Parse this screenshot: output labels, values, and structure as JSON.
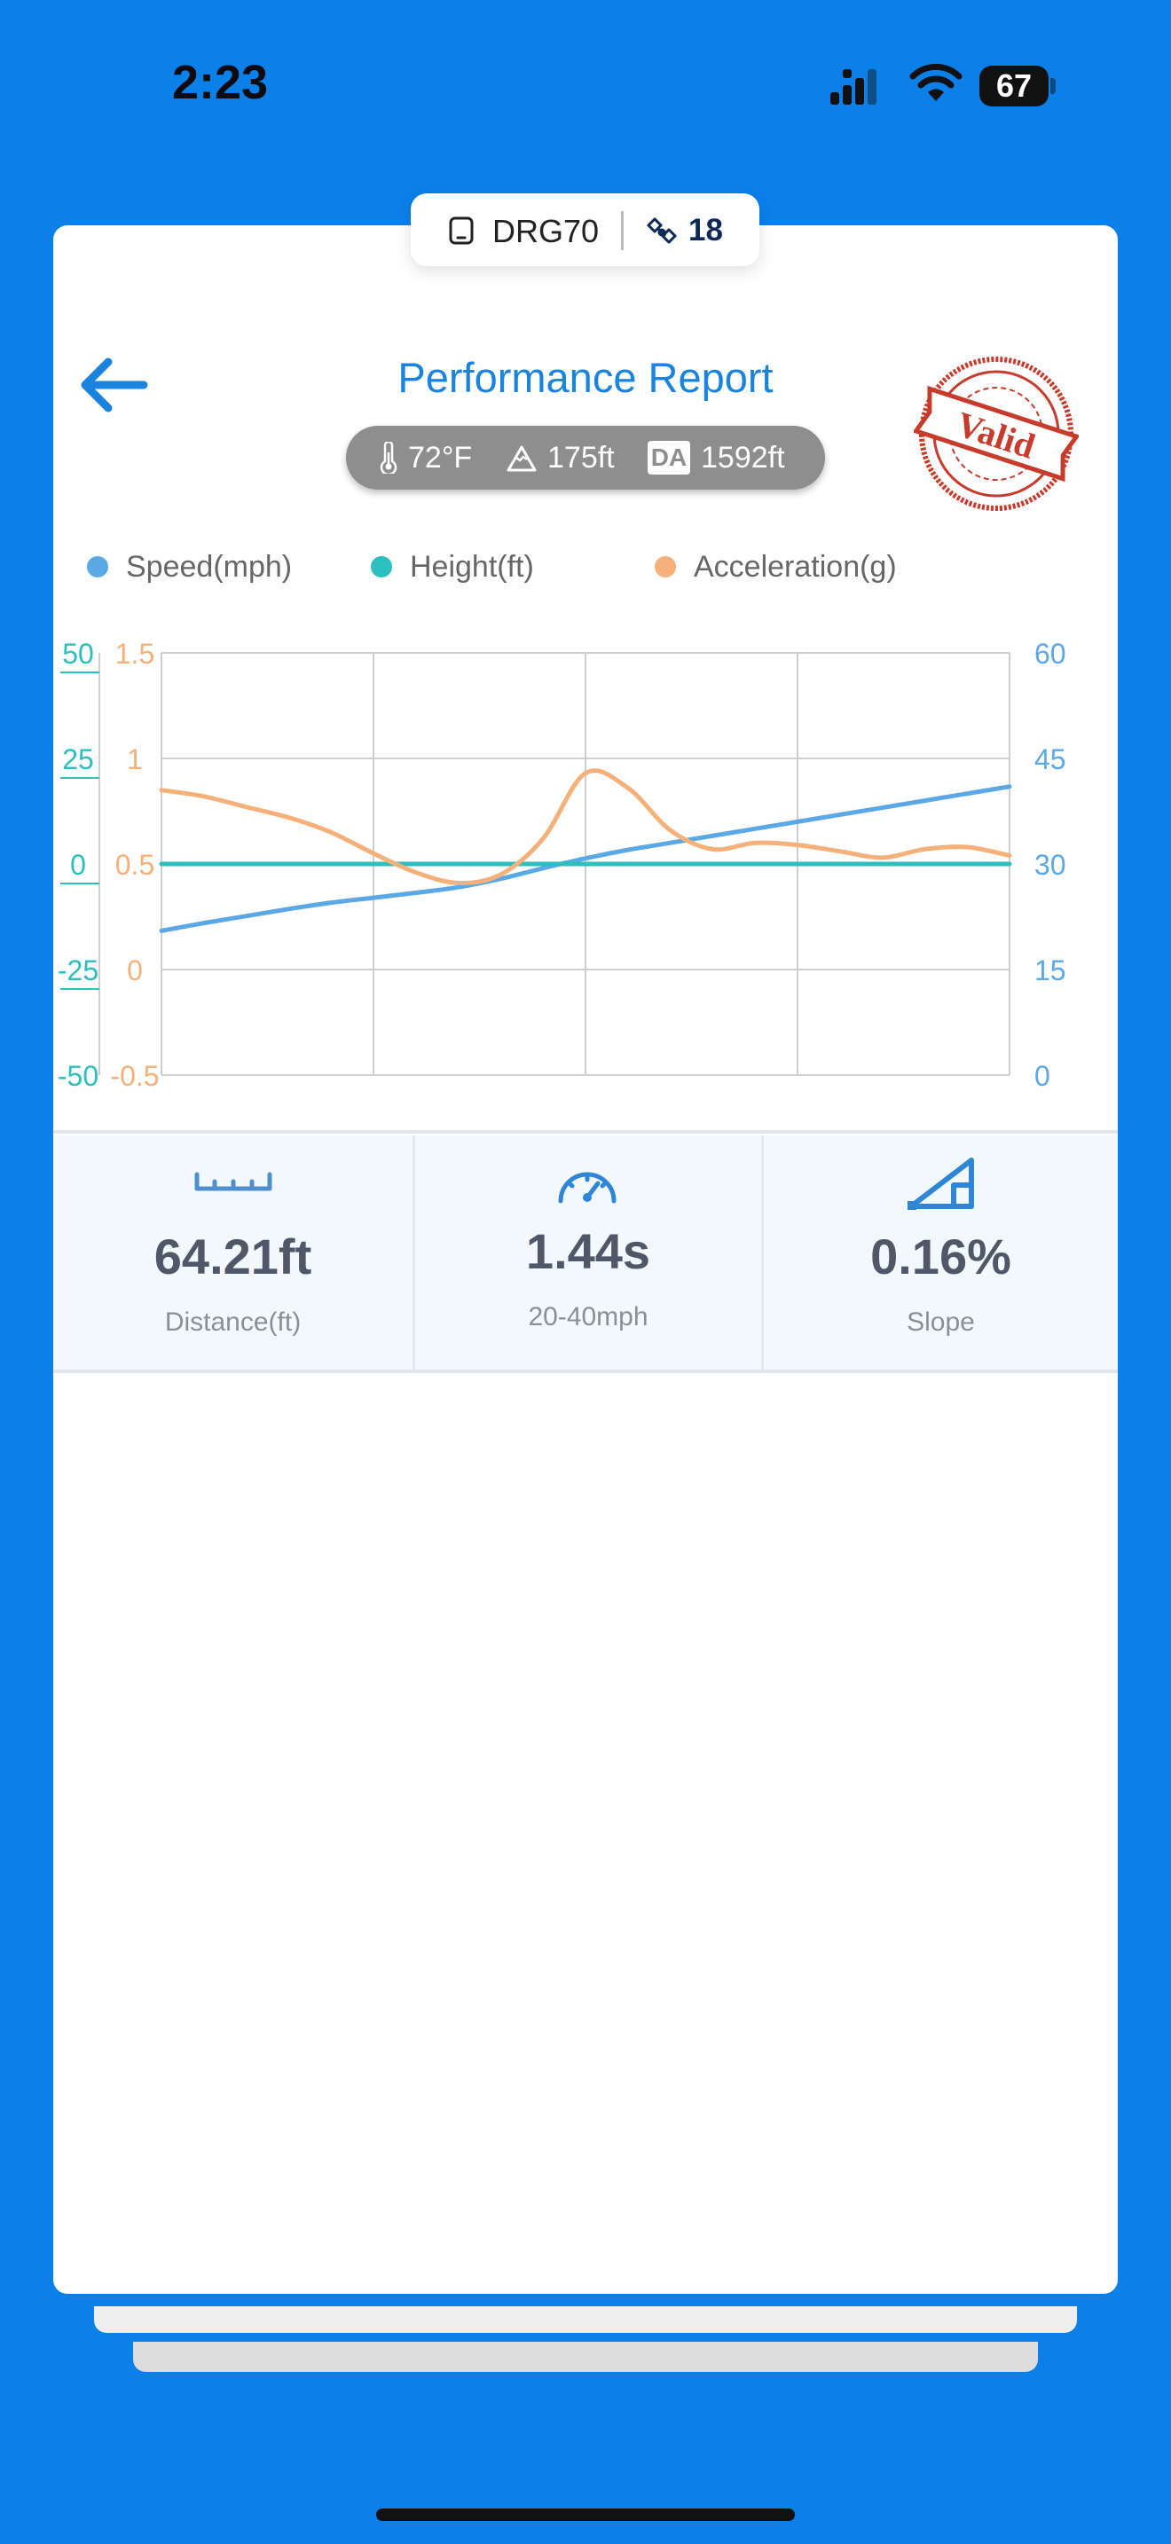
{
  "status_bar": {
    "time": "2:23",
    "battery_level": "67",
    "icons": [
      "cellular-signal-icon",
      "wifi-icon",
      "battery-icon"
    ]
  },
  "device": {
    "name": "DRG70",
    "badge_count": "18",
    "icons": [
      "phone-device-icon",
      "satellite-icon"
    ]
  },
  "header": {
    "title": "Performance Report",
    "back_icon": "arrow-left-icon",
    "stamp_text": "Valid"
  },
  "conditions": {
    "temperature": "72°F",
    "altitude": "175ft",
    "da_label": "DA",
    "density_altitude": "1592ft"
  },
  "colors": {
    "accent": "#1a83dd",
    "background": "#0a80e8",
    "speed": "#5aa9e6",
    "height": "#2bbfbd",
    "acceleration": "#f6b07a",
    "stamp": "#c83a2a"
  },
  "chart_data": {
    "type": "line",
    "legend_position": "top",
    "grid": true,
    "x": [
      0,
      0.05,
      0.1,
      0.15,
      0.2,
      0.25,
      0.3,
      0.35,
      0.4,
      0.45,
      0.5,
      0.55,
      0.6,
      0.65,
      0.7,
      0.75,
      0.8,
      0.85,
      0.9,
      0.95,
      1.0
    ],
    "y_axes": {
      "height": {
        "ticks": [
          "50",
          "25",
          "0",
          "-25",
          "-50"
        ],
        "range": [
          -50,
          50
        ],
        "side": "left-outer"
      },
      "acceleration": {
        "ticks": [
          "1.5",
          "1",
          "0.5",
          "0",
          "-0.5"
        ],
        "range": [
          -0.5,
          1.5
        ],
        "side": "left-inner"
      },
      "speed": {
        "ticks": [
          "60",
          "45",
          "30",
          "15",
          "0"
        ],
        "range": [
          0,
          60
        ],
        "side": "right"
      }
    },
    "series": [
      {
        "name": "Speed(mph)",
        "axis": "speed",
        "values": [
          20.5,
          21.6,
          22.6,
          23.6,
          24.5,
          25.2,
          25.9,
          26.7,
          27.9,
          29.4,
          30.8,
          32.0,
          33.0,
          34.0,
          35.0,
          36.0,
          37.0,
          38.0,
          39.0,
          40.0,
          41.0
        ]
      },
      {
        "name": "Height(ft)",
        "axis": "height",
        "values": [
          0,
          0,
          0,
          0,
          0,
          0,
          0,
          0,
          0,
          0,
          0,
          0,
          0,
          0,
          0,
          0,
          0,
          0,
          0,
          0,
          0
        ]
      },
      {
        "name": "Acceleration(g)",
        "axis": "acceleration",
        "values": [
          0.85,
          0.82,
          0.77,
          0.72,
          0.65,
          0.55,
          0.46,
          0.41,
          0.45,
          0.62,
          0.93,
          0.86,
          0.66,
          0.57,
          0.6,
          0.59,
          0.56,
          0.53,
          0.57,
          0.58,
          0.54
        ]
      }
    ]
  },
  "stats": [
    {
      "icon": "ruler-icon",
      "value": "64.21ft",
      "label": "Distance(ft)"
    },
    {
      "icon": "speedometer-icon",
      "value": "1.44s",
      "label": "20-40mph"
    },
    {
      "icon": "slope-icon",
      "value": "0.16%",
      "label": "Slope"
    }
  ]
}
